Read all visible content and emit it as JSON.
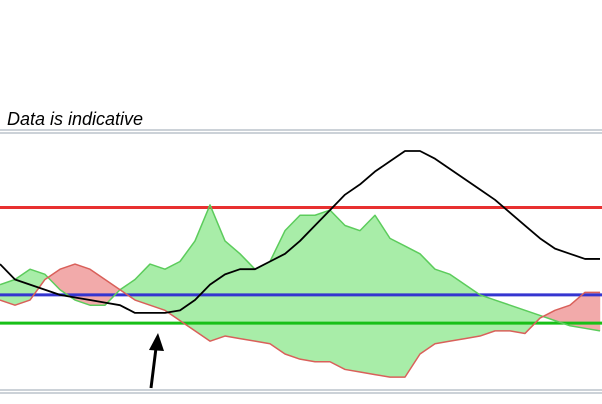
{
  "chart_data": {
    "type": "line",
    "title": "Data is indicative",
    "categories": [
      null,
      null,
      null,
      null,
      null,
      null,
      null,
      null,
      null,
      null,
      null,
      null,
      null,
      null,
      null,
      null,
      null,
      null,
      null,
      null,
      null,
      null,
      null,
      null,
      null,
      null,
      null,
      null,
      null,
      null,
      null,
      null,
      null,
      null,
      null,
      null,
      null,
      null,
      null,
      null,
      null
    ],
    "ylim": [
      0,
      100
    ],
    "series": [
      {
        "color": "#000000",
        "values": [
          49,
          43,
          41,
          39,
          37,
          36,
          35,
          34,
          33,
          30,
          30,
          30,
          31,
          35,
          41,
          45,
          47,
          47,
          50,
          53,
          58,
          64,
          70,
          76,
          80,
          85,
          89,
          93,
          93,
          90,
          86,
          82,
          78,
          74,
          69,
          64,
          59,
          55,
          53,
          51,
          51
        ]
      },
      {
        "color": "#5ccc5c",
        "fill": "#a8eda8",
        "values": [
          41,
          43,
          47,
          45,
          39,
          35,
          33,
          33,
          39,
          43,
          49,
          47,
          50,
          58,
          72,
          58,
          53,
          47,
          50,
          62,
          68,
          68,
          70,
          64,
          62,
          68,
          59,
          56,
          53,
          47,
          45,
          41,
          37,
          35,
          33,
          31,
          29,
          27,
          25,
          24,
          23
        ]
      },
      {
        "color": "#d9605a",
        "fill": "#f2aaaa",
        "values": [
          35,
          33,
          35,
          43,
          47,
          49,
          47,
          43,
          39,
          35,
          33,
          31,
          27,
          23,
          19,
          21,
          20,
          19,
          18,
          14,
          12,
          11,
          11,
          8,
          7,
          6,
          5,
          5,
          14,
          18,
          19,
          20,
          21,
          23,
          23,
          22,
          28,
          31,
          33,
          38,
          38
        ]
      }
    ],
    "hlines": [
      {
        "value": 71,
        "color": "#e83030"
      },
      {
        "value": 37,
        "color": "#3535d0"
      },
      {
        "value": 26,
        "color": "#18c018"
      }
    ]
  }
}
